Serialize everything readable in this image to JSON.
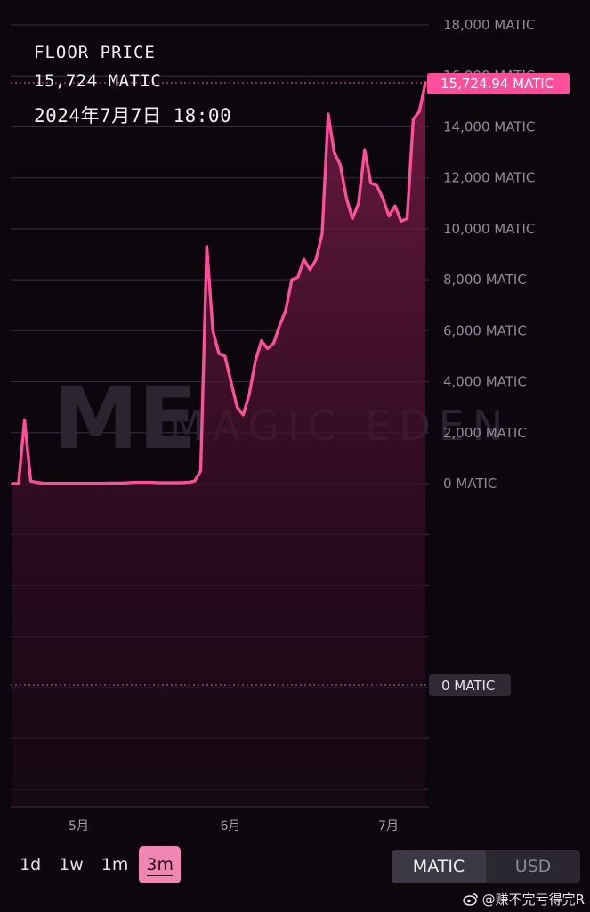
{
  "header": {
    "label": "FLOOR PRICE",
    "price": "15,724 MATIC",
    "datetime": "2024年7月7日  18:00"
  },
  "watermark": "MAGIC EDEN",
  "current_price_tag": "15,724.94 MATIC",
  "crosshair_tag": "0 MATIC",
  "ranges": [
    "1d",
    "1w",
    "1m",
    "3m"
  ],
  "active_range": "3m",
  "currency": {
    "options": [
      "MATIC",
      "USD"
    ],
    "active": "MATIC"
  },
  "weibo_handle": "@赚不完亏得完R",
  "colors": {
    "line": "#ff4f9a",
    "tag": "#ff4f9a",
    "background": "#0b070c",
    "active_range": "#f086b4"
  },
  "chart_data": {
    "type": "area",
    "title": "FLOOR PRICE",
    "xlabel": "",
    "ylabel": "",
    "ylim": [
      -8000,
      18000
    ],
    "yticks": [
      0,
      2000,
      4000,
      6000,
      8000,
      10000,
      12000,
      14000,
      16000,
      18000
    ],
    "ytick_labels": [
      "0 MATIC",
      "2,000 MATIC",
      "4,000 MATIC",
      "6,000 MATIC",
      "8,000 MATIC",
      "10,000 MATIC",
      "12,000 MATIC",
      "14,000 MATIC",
      "16,000 MATIC",
      "18,000 MATIC"
    ],
    "xticks": [
      "5月",
      "6月",
      "7月"
    ],
    "series": [
      {
        "values": [
          0,
          0,
          2500,
          100,
          50,
          10,
          10,
          10,
          10,
          10,
          10,
          10,
          10,
          10,
          10,
          10,
          20,
          20,
          20,
          30,
          50,
          50,
          50,
          50,
          30,
          30,
          30,
          30,
          40,
          50,
          100,
          500,
          9300,
          6000,
          5100,
          5000,
          4000,
          3000,
          2700,
          3500,
          4800,
          5600,
          5300,
          5500,
          6200,
          6800,
          8000,
          8100,
          8800,
          8400,
          8800,
          9800,
          14500,
          13000,
          12500,
          11200,
          10400,
          11000,
          13100,
          11800,
          11700,
          11200,
          10500,
          10900,
          10300,
          10400,
          14300,
          14600,
          15725
        ]
      }
    ]
  }
}
